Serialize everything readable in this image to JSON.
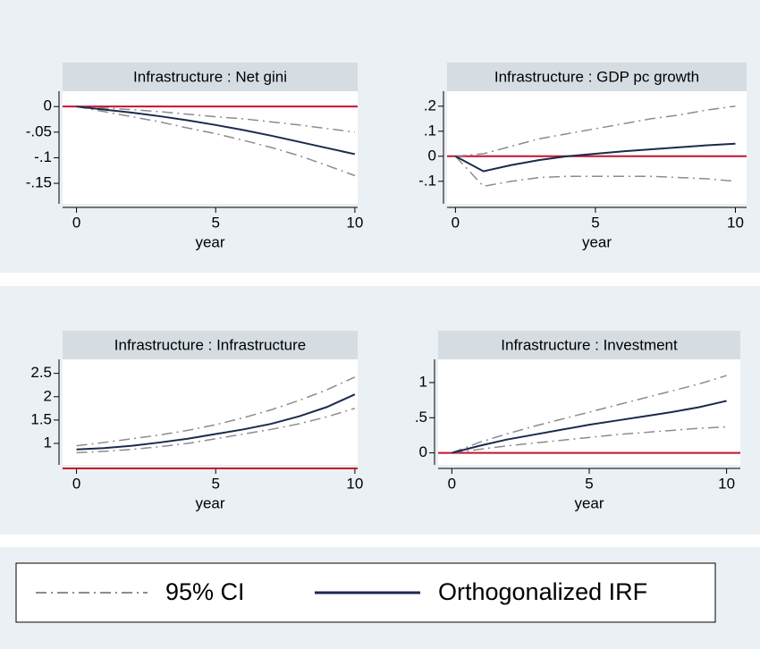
{
  "chart_data": [
    {
      "type": "line",
      "title": "Infrastructure : Net gini",
      "xlabel": "year",
      "x": [
        0,
        1,
        2,
        3,
        4,
        5,
        6,
        7,
        8,
        9,
        10
      ],
      "xlim": [
        -0.5,
        10.1
      ],
      "xticks": [
        0,
        5,
        10
      ],
      "ylim": [
        -0.19,
        0.03
      ],
      "yticks": [
        {
          "value": 0,
          "label": "0"
        },
        {
          "value": -0.05,
          "label": "-.05"
        },
        {
          "value": -0.1,
          "label": "-.1"
        },
        {
          "value": -0.15,
          "label": "-.15"
        }
      ],
      "refline": 0,
      "refline_color": "#c8102e",
      "series": [
        {
          "name": "95% CI",
          "color": "#8c8c8c",
          "upper": [
            0,
            -0.003,
            -0.006,
            -0.01,
            -0.015,
            -0.02,
            -0.024,
            -0.03,
            -0.036,
            -0.043,
            -0.05
          ],
          "lower": [
            0,
            -0.01,
            -0.02,
            -0.03,
            -0.042,
            -0.053,
            -0.066,
            -0.08,
            -0.096,
            -0.115,
            -0.135
          ]
        },
        {
          "name": "Orthogonalized IRF",
          "color": "#1a2b4c",
          "values": [
            0,
            -0.006,
            -0.012,
            -0.019,
            -0.027,
            -0.036,
            -0.046,
            -0.057,
            -0.069,
            -0.081,
            -0.093
          ]
        }
      ]
    },
    {
      "type": "line",
      "title": "Infrastructure : GDP pc growth",
      "xlabel": "year",
      "x": [
        0,
        1,
        2,
        3,
        4,
        5,
        6,
        7,
        8,
        9,
        10
      ],
      "xlim": [
        -0.3,
        10.4
      ],
      "xticks": [
        0,
        5,
        10
      ],
      "ylim": [
        -0.19,
        0.26
      ],
      "yticks": [
        {
          "value": 0.2,
          "label": ".2"
        },
        {
          "value": 0.1,
          "label": ".1"
        },
        0,
        {
          "value": -0.1,
          "label": "-.1"
        }
      ],
      "refline": 0,
      "refline_color": "#c8102e",
      "series": [
        {
          "name": "95% CI",
          "color": "#8c8c8c",
          "upper": [
            0,
            0.01,
            0.04,
            0.07,
            0.09,
            0.11,
            0.13,
            0.15,
            0.165,
            0.185,
            0.2
          ],
          "lower": [
            0,
            -0.12,
            -0.1,
            -0.085,
            -0.08,
            -0.08,
            -0.08,
            -0.08,
            -0.085,
            -0.09,
            -0.1
          ]
        },
        {
          "name": "Orthogonalized IRF",
          "color": "#1a2b4c",
          "values": [
            0,
            -0.06,
            -0.035,
            -0.015,
            0,
            0.01,
            0.02,
            0.028,
            0.036,
            0.044,
            0.05
          ]
        }
      ]
    },
    {
      "type": "line",
      "title": "Infrastructure : Infrastructure",
      "xlabel": "year",
      "x": [
        0,
        1,
        2,
        3,
        4,
        5,
        6,
        7,
        8,
        9,
        10
      ],
      "xlim": [
        -0.5,
        10.1
      ],
      "xticks": [
        0,
        5,
        10
      ],
      "ylim": [
        0.54,
        2.8
      ],
      "yticks": [
        2.5,
        2,
        1.5,
        1
      ],
      "refline": 0,
      "refline_color": "#c8102e",
      "series": [
        {
          "name": "95% CI",
          "color": "#8c8c8c",
          "upper": [
            0.95,
            1.02,
            1.1,
            1.18,
            1.28,
            1.4,
            1.55,
            1.72,
            1.92,
            2.15,
            2.42
          ],
          "lower": [
            0.8,
            0.83,
            0.87,
            0.93,
            1.0,
            1.1,
            1.2,
            1.3,
            1.42,
            1.57,
            1.75
          ]
        },
        {
          "name": "Orthogonalized IRF",
          "color": "#1a2b4c",
          "values": [
            0.87,
            0.9,
            0.95,
            1.02,
            1.1,
            1.2,
            1.3,
            1.42,
            1.58,
            1.78,
            2.05
          ]
        }
      ]
    },
    {
      "type": "line",
      "title": "Infrastructure : Investment",
      "xlabel": "year",
      "x": [
        0,
        1,
        2,
        3,
        4,
        5,
        6,
        7,
        8,
        9,
        10
      ],
      "xlim": [
        -0.5,
        10.5
      ],
      "xticks": [
        0,
        5,
        10
      ],
      "ylim": [
        -0.17,
        1.33
      ],
      "yticks": [
        1,
        {
          "value": 0.5,
          "label": ".5"
        },
        0
      ],
      "refline": 0,
      "refline_color": "#c8102e",
      "series": [
        {
          "name": "95% CI",
          "color": "#8c8c8c",
          "upper": [
            0,
            0.15,
            0.27,
            0.38,
            0.48,
            0.58,
            0.68,
            0.78,
            0.88,
            0.98,
            1.1
          ],
          "lower": [
            0,
            0.05,
            0.1,
            0.14,
            0.18,
            0.22,
            0.26,
            0.29,
            0.32,
            0.35,
            0.37
          ]
        },
        {
          "name": "Orthogonalized IRF",
          "color": "#1a2b4c",
          "values": [
            0,
            0.1,
            0.19,
            0.26,
            0.33,
            0.4,
            0.46,
            0.52,
            0.58,
            0.65,
            0.74
          ]
        }
      ]
    }
  ]
}
